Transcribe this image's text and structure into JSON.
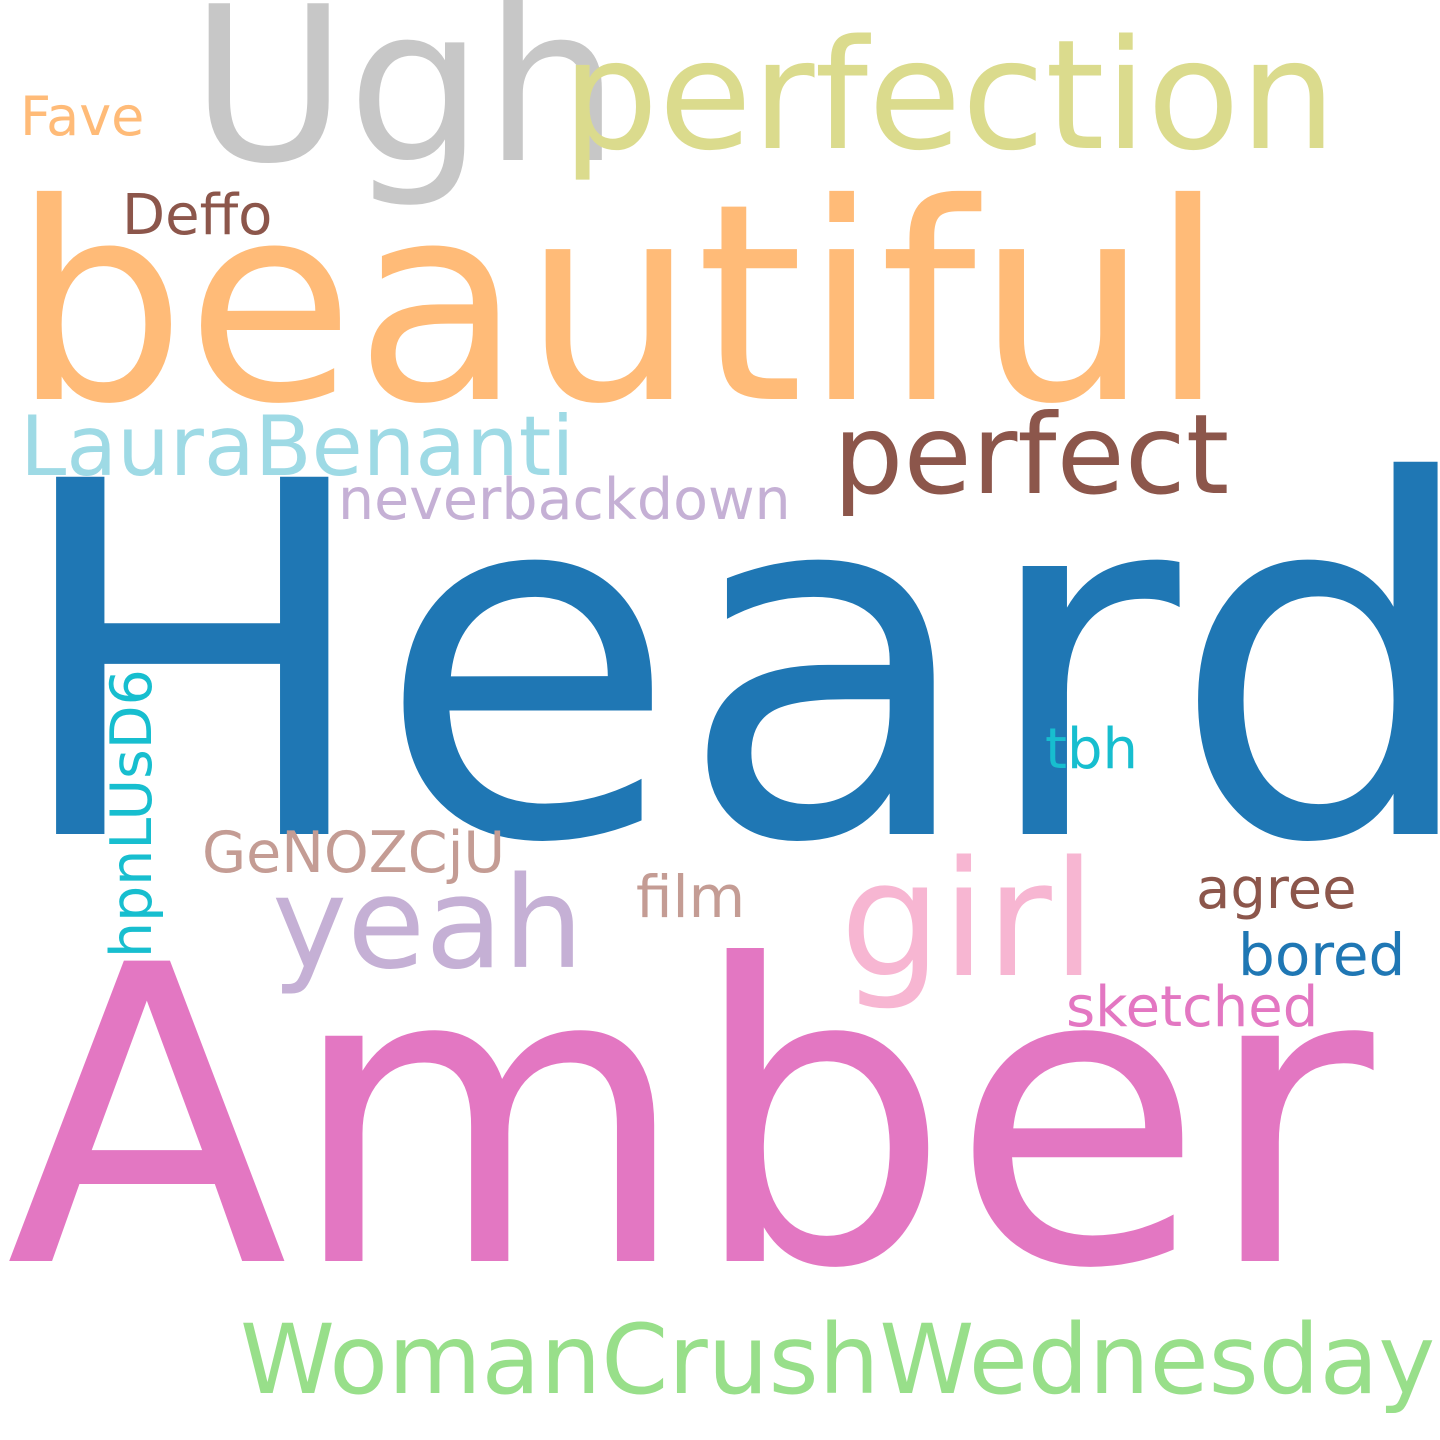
{
  "words": {
    "heard": {
      "text": "Heard",
      "color": "#1f77b4"
    },
    "amber": {
      "text": "Amber",
      "color": "#e377c2"
    },
    "beautiful": {
      "text": "beautiful",
      "color": "#ffbb78"
    },
    "ugh": {
      "text": "Ugh",
      "color": "#c7c7c7"
    },
    "perfection": {
      "text": "perfection",
      "color": "#dbdb8d"
    },
    "perfect": {
      "text": "perfect",
      "color": "#8c564b"
    },
    "laurabenanti": {
      "text": "LauraBenanti",
      "color": "#9edae5"
    },
    "neverbackdown": {
      "text": "neverbackdown",
      "color": "#c5b0d5"
    },
    "yeah": {
      "text": "yeah",
      "color": "#c5b0d5"
    },
    "girl": {
      "text": "girl",
      "color": "#f7b6d2"
    },
    "womancrush": {
      "text": "WomanCrushWednesday",
      "color": "#98df8a"
    },
    "deffo": {
      "text": "Deffo",
      "color": "#8c564b"
    },
    "fave": {
      "text": "Fave",
      "color": "#ffbb78"
    },
    "tbh": {
      "text": "tbh",
      "color": "#17becf"
    },
    "genozcju": {
      "text": "GeNOZCjU",
      "color": "#c49c94"
    },
    "film": {
      "text": "film",
      "color": "#c49c94"
    },
    "agree": {
      "text": "agree",
      "color": "#8c564b"
    },
    "bored": {
      "text": "bored",
      "color": "#1f77b4"
    },
    "sketched": {
      "text": "sketched",
      "color": "#e377c2"
    },
    "hpnlusd6": {
      "text": "hpnLUsD6",
      "color": "#17becf"
    }
  }
}
